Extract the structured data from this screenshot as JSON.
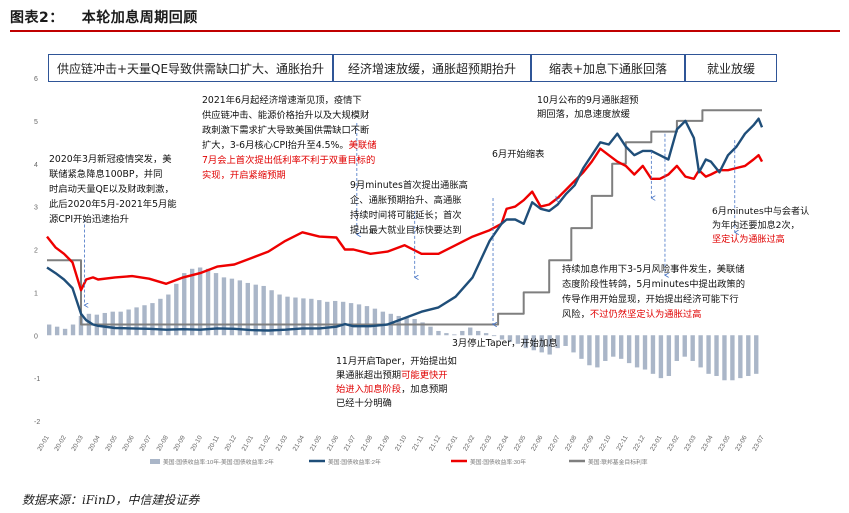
{
  "header": {
    "figure_label": "图表2：",
    "figure_title": "本轮加息周期回顾"
  },
  "phases": [
    {
      "label": "供应链冲击+天量QE导致供需缺口扩大、通胀抬升"
    },
    {
      "label": "经济增速放缓，通胀超预期抬升"
    },
    {
      "label": "缩表+加息下通胀回落"
    },
    {
      "label": "就业放缓"
    }
  ],
  "source": "数据来源：iFinD，中信建投证券",
  "colors": {
    "spread": "#aab6c8",
    "y10": "#1f4e79",
    "y30": "#ee0000",
    "fedfunds": "#7f7f7f",
    "annotation_red": "#e00000",
    "box": "#2f5597",
    "title_rule": "#c00000"
  },
  "chart_data": {
    "type": "line",
    "ylim": [
      -2,
      6
    ],
    "yticks": [
      -2,
      -1,
      0,
      1,
      2,
      3,
      4,
      5,
      6
    ],
    "x_start": "2020-01",
    "x_end": "2023-08",
    "x_ticks": [
      "20-01",
      "20-02",
      "20-03",
      "20-04",
      "20-05",
      "20-06",
      "20-07",
      "20-08",
      "20-09",
      "20-10",
      "20-11",
      "20-12",
      "21-01",
      "21-02",
      "21-03",
      "21-04",
      "21-05",
      "21-06",
      "21-07",
      "21-08",
      "21-09",
      "21-10",
      "21-11",
      "21-12",
      "22-01",
      "22-02",
      "22-03",
      "22-04",
      "22-05",
      "22-06",
      "22-07",
      "22-08",
      "22-09",
      "22-10",
      "22-11",
      "22-12",
      "23-01",
      "23-02",
      "23-03",
      "23-04",
      "23-05",
      "23-06",
      "23-07"
    ],
    "legend": [
      "美国:国债收益率:10年-美国:国债收益率:2年",
      "美国:国债收益率:2年",
      "美国:国债收益率:30年",
      "美国:联邦基金目标利率"
    ],
    "series": [
      {
        "name": "美国:国债收益率:2年",
        "values": [
          [
            0,
            1.58
          ],
          [
            0.5,
            1.45
          ],
          [
            1.0,
            1.3
          ],
          [
            1.5,
            1.1
          ],
          [
            2.0,
            0.5
          ],
          [
            2.3,
            0.35
          ],
          [
            2.7,
            0.25
          ],
          [
            3,
            0.22
          ],
          [
            4,
            0.17
          ],
          [
            5,
            0.16
          ],
          [
            6,
            0.15
          ],
          [
            7,
            0.13
          ],
          [
            8,
            0.14
          ],
          [
            9,
            0.13
          ],
          [
            10,
            0.16
          ],
          [
            11,
            0.15
          ],
          [
            12,
            0.12
          ],
          [
            13,
            0.11
          ],
          [
            14,
            0.13
          ],
          [
            15,
            0.16
          ],
          [
            16,
            0.16
          ],
          [
            17,
            0.2
          ],
          [
            17.5,
            0.26
          ],
          [
            18,
            0.21
          ],
          [
            19,
            0.21
          ],
          [
            20,
            0.25
          ],
          [
            21,
            0.4
          ],
          [
            22,
            0.55
          ],
          [
            23,
            0.65
          ],
          [
            24,
            0.9
          ],
          [
            25,
            1.35
          ],
          [
            26,
            2.2
          ],
          [
            26.7,
            2.6
          ],
          [
            27,
            2.7
          ],
          [
            27.5,
            2.7
          ],
          [
            28,
            2.6
          ],
          [
            28.5,
            3.1
          ],
          [
            29,
            2.95
          ],
          [
            29.5,
            2.9
          ],
          [
            30,
            3.05
          ],
          [
            30.5,
            3.3
          ],
          [
            31,
            3.5
          ],
          [
            31.5,
            3.9
          ],
          [
            32,
            4.2
          ],
          [
            32.5,
            4.5
          ],
          [
            33,
            4.45
          ],
          [
            33.5,
            4.7
          ],
          [
            34,
            4.4
          ],
          [
            34.5,
            4.2
          ],
          [
            35,
            4.3
          ],
          [
            35.5,
            4.3
          ],
          [
            36,
            4.2
          ],
          [
            36.5,
            4.1
          ],
          [
            37,
            4.8
          ],
          [
            37.5,
            5.0
          ],
          [
            38,
            4.6
          ],
          [
            38.3,
            3.8
          ],
          [
            38.7,
            4.1
          ],
          [
            39,
            4.05
          ],
          [
            39.5,
            3.8
          ],
          [
            40,
            4.2
          ],
          [
            40.5,
            4.4
          ],
          [
            41,
            4.7
          ],
          [
            41.5,
            4.9
          ],
          [
            41.8,
            5.05
          ],
          [
            42,
            4.85
          ]
        ]
      },
      {
        "name": "美国:国债收益率:30年",
        "values": [
          [
            0,
            2.3
          ],
          [
            0.5,
            2.05
          ],
          [
            1.0,
            1.9
          ],
          [
            1.5,
            1.7
          ],
          [
            2.0,
            1.05
          ],
          [
            2.3,
            1.3
          ],
          [
            2.7,
            1.35
          ],
          [
            3,
            1.3
          ],
          [
            4,
            1.35
          ],
          [
            5,
            1.38
          ],
          [
            6,
            1.32
          ],
          [
            7,
            1.2
          ],
          [
            8,
            1.35
          ],
          [
            9,
            1.45
          ],
          [
            10,
            1.6
          ],
          [
            11,
            1.65
          ],
          [
            12,
            1.8
          ],
          [
            13,
            1.95
          ],
          [
            14,
            2.2
          ],
          [
            15,
            2.4
          ],
          [
            16,
            2.3
          ],
          [
            17,
            2.28
          ],
          [
            17.5,
            2.0
          ],
          [
            18,
            2.0
          ],
          [
            19,
            1.9
          ],
          [
            20,
            1.95
          ],
          [
            21,
            2.1
          ],
          [
            22,
            1.9
          ],
          [
            23,
            1.9
          ],
          [
            24,
            2.1
          ],
          [
            25,
            2.3
          ],
          [
            26,
            2.45
          ],
          [
            26.7,
            2.6
          ],
          [
            27,
            2.95
          ],
          [
            27.5,
            3.0
          ],
          [
            28,
            3.15
          ],
          [
            28.5,
            3.35
          ],
          [
            29,
            3.0
          ],
          [
            29.5,
            3.05
          ],
          [
            30,
            3.2
          ],
          [
            30.5,
            3.4
          ],
          [
            31,
            3.6
          ],
          [
            31.5,
            3.8
          ],
          [
            32,
            4.05
          ],
          [
            32.5,
            4.35
          ],
          [
            33,
            4.2
          ],
          [
            33.5,
            4.05
          ],
          [
            34,
            3.95
          ],
          [
            34.5,
            3.75
          ],
          [
            35,
            3.95
          ],
          [
            35.5,
            3.65
          ],
          [
            36,
            3.65
          ],
          [
            36.5,
            3.75
          ],
          [
            37,
            3.95
          ],
          [
            37.5,
            3.7
          ],
          [
            38,
            3.65
          ],
          [
            38.3,
            3.85
          ],
          [
            38.7,
            3.7
          ],
          [
            39,
            3.75
          ],
          [
            39.5,
            3.85
          ],
          [
            40,
            3.85
          ],
          [
            40.5,
            3.9
          ],
          [
            41,
            3.95
          ],
          [
            41.5,
            4.1
          ],
          [
            41.8,
            4.2
          ],
          [
            42,
            4.05
          ]
        ]
      },
      {
        "name": "美国:联邦基金目标利率",
        "values": [
          [
            0,
            1.75
          ],
          [
            2.0,
            1.75
          ],
          [
            2.0,
            0.25
          ],
          [
            26.5,
            0.25
          ],
          [
            26.5,
            0.5
          ],
          [
            28.0,
            0.5
          ],
          [
            28.0,
            1.0
          ],
          [
            29.5,
            1.0
          ],
          [
            29.5,
            1.75
          ],
          [
            30.8,
            1.75
          ],
          [
            30.8,
            2.5
          ],
          [
            32.0,
            2.5
          ],
          [
            32.0,
            3.25
          ],
          [
            33.2,
            3.25
          ],
          [
            33.2,
            4.0
          ],
          [
            34.0,
            4.0
          ],
          [
            34.0,
            4.5
          ],
          [
            35.5,
            4.5
          ],
          [
            35.5,
            4.75
          ],
          [
            37.0,
            4.75
          ],
          [
            37.0,
            5.0
          ],
          [
            38.5,
            5.0
          ],
          [
            38.5,
            5.25
          ],
          [
            42,
            5.25
          ]
        ]
      }
    ],
    "spread_series": {
      "name": "美国:国债收益率:10年-美国:国债收益率:2年",
      "values": [
        0.25,
        0.2,
        0.15,
        0.25,
        0.45,
        0.5,
        0.48,
        0.52,
        0.55,
        0.55,
        0.6,
        0.65,
        0.7,
        0.75,
        0.85,
        0.95,
        1.2,
        1.45,
        1.55,
        1.58,
        1.55,
        1.45,
        1.35,
        1.32,
        1.28,
        1.22,
        1.18,
        1.15,
        1.05,
        0.95,
        0.9,
        0.88,
        0.86,
        0.85,
        0.82,
        0.78,
        0.8,
        0.78,
        0.75,
        0.72,
        0.68,
        0.62,
        0.55,
        0.5,
        0.45,
        0.4,
        0.38,
        0.3,
        0.2,
        0.1,
        0.05,
        0.02,
        0.1,
        0.18,
        0.1,
        0.05,
        -0.02,
        -0.1,
        -0.15,
        -0.2,
        -0.3,
        -0.35,
        -0.4,
        -0.45,
        -0.3,
        -0.25,
        -0.4,
        -0.55,
        -0.7,
        -0.75,
        -0.6,
        -0.5,
        -0.55,
        -0.65,
        -0.75,
        -0.8,
        -0.9,
        -1.0,
        -0.95,
        -0.6,
        -0.5,
        -0.6,
        -0.75,
        -0.9,
        -0.95,
        -1.05,
        -1.05,
        -1.0,
        -0.95,
        -0.9
      ]
    },
    "guides": [
      {
        "x": 2.2,
        "y1": 0.7,
        "y2": 2.7
      },
      {
        "x": 18.2,
        "y1": 2.35,
        "y2": 4.95
      },
      {
        "x": 21.6,
        "y1": 1.35,
        "y2": 2.9
      },
      {
        "x": 26.2,
        "y1": 0.25,
        "y2": 3.2
      },
      {
        "x": 29.9,
        "y1": 3.15,
        "y2": 3.25
      },
      {
        "x": 35.5,
        "y1": 3.2,
        "y2": 4.3
      },
      {
        "x": 36.3,
        "y1": 1.4,
        "y2": 4.7
      },
      {
        "x": 40.4,
        "y1": 2.4,
        "y2": 4.55
      }
    ],
    "annotations": [
      {
        "id": "a1",
        "lines": [
          {
            "text": "2020年3月新冠疫情突发，美"
          },
          {
            "text": "联储紧急降息100BP，并同"
          },
          {
            "text": "时启动天量QE以及财政刺激，"
          },
          {
            "text": "此后2020年5月-2021年5月能"
          },
          {
            "text": "源CPI开始迅速抬升"
          }
        ]
      },
      {
        "id": "a2",
        "lines": [
          {
            "text": "2021年6月起经济增速渐见顶，疫情下"
          },
          {
            "text": "供应链冲击、能源价格抬升以及大规模财"
          },
          {
            "text": "政刺激下需求扩大导致美国供需缺口不断"
          },
          {
            "text": "扩大，3-6月核心CPI抬升至4.5%。",
            "red": "美联储"
          },
          {
            "text": "",
            "red": "7月会上首次提出低利率不利于双重目标的"
          },
          {
            "text": "",
            "red": "实现，开启紧缩预期"
          }
        ]
      },
      {
        "id": "a3",
        "lines": [
          {
            "text": "9月minutes首次提出通胀高"
          },
          {
            "text": "企、通胀预期抬升、高通胀"
          },
          {
            "text": "持续时间将可能延长；首次"
          },
          {
            "text": "提出最大就业目标快要达到"
          }
        ]
      },
      {
        "id": "a4",
        "lines": [
          {
            "text": "10月公布的9月通胀超预"
          },
          {
            "text": "期回落，加息速度放缓"
          }
        ]
      },
      {
        "id": "a5",
        "lines": [
          {
            "text": "6月开始缩表"
          }
        ]
      },
      {
        "id": "a6",
        "lines": [
          {
            "text": "6月minutes中与会者认"
          },
          {
            "text": "为年内还要加息2次，"
          },
          {
            "text": "",
            "red": "坚定认为通胀过高"
          }
        ]
      },
      {
        "id": "a7",
        "lines": [
          {
            "text": "持续加息作用下3-5月风险事件发生，美联储"
          },
          {
            "text": "态度阶段性转鸽，5月minutes中提出政策的"
          },
          {
            "text": "传导作用开始显现，开始提出经济可能下行"
          },
          {
            "text": "风险，",
            "red": "不过仍然坚定认为通胀过高"
          }
        ]
      },
      {
        "id": "a8",
        "lines": [
          {
            "text": "3月停止Taper，开始加息"
          }
        ]
      },
      {
        "id": "a9",
        "lines": [
          {
            "text": "11月开启Taper，开始提出如"
          },
          {
            "text": "果通胀超出预期",
            "red": "可能更快开"
          },
          {
            "text": "",
            "red": "始进入加息阶段",
            "tail": "，加息预期"
          },
          {
            "text": "已经十分明确"
          }
        ]
      }
    ]
  }
}
